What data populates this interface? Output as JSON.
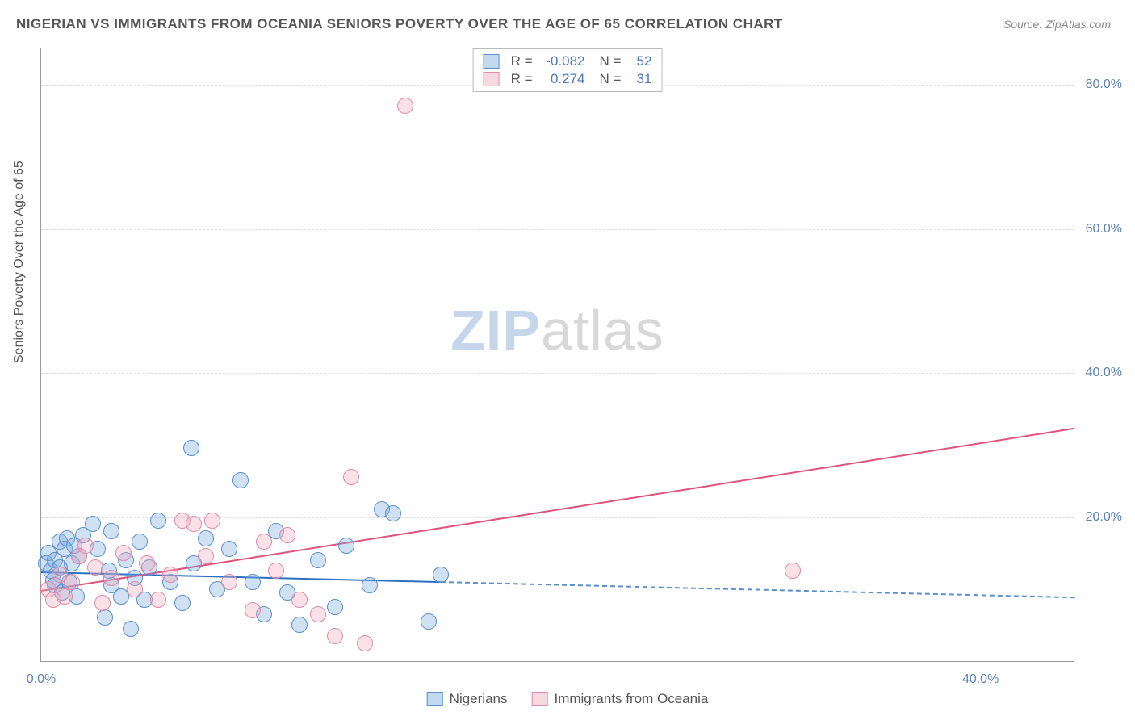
{
  "title": "NIGERIAN VS IMMIGRANTS FROM OCEANIA SENIORS POVERTY OVER THE AGE OF 65 CORRELATION CHART",
  "source": "Source: ZipAtlas.com",
  "ylabel": "Seniors Poverty Over the Age of 65",
  "watermark": {
    "zip": "ZIP",
    "atlas": "atlas"
  },
  "chart": {
    "type": "scatter",
    "xlim": [
      0,
      44
    ],
    "ylim": [
      0,
      85
    ],
    "xticks": [
      {
        "value": 0,
        "label": "0.0%"
      },
      {
        "value": 40,
        "label": "40.0%"
      }
    ],
    "yticks": [
      {
        "value": 20,
        "label": "20.0%"
      },
      {
        "value": 40,
        "label": "40.0%"
      },
      {
        "value": 60,
        "label": "60.0%"
      },
      {
        "value": 80,
        "label": "80.0%"
      }
    ],
    "background_color": "#ffffff",
    "grid_color": "#dddddd",
    "marker_radius": 10,
    "series": [
      {
        "name": "Nigerians",
        "color_fill": "rgba(120,170,220,0.35)",
        "color_stroke": "#5a8fcf",
        "r": "-0.082",
        "n": "52",
        "trend": {
          "y_at_x0": 12.5,
          "y_at_xmax": 9.0,
          "solid_until_x": 17,
          "color": "#2d6fbf"
        },
        "points": [
          [
            0.2,
            13.5
          ],
          [
            0.3,
            15.0
          ],
          [
            0.4,
            12.5
          ],
          [
            0.5,
            11.2
          ],
          [
            0.6,
            14.0
          ],
          [
            0.6,
            10.5
          ],
          [
            0.8,
            16.5
          ],
          [
            0.8,
            13.0
          ],
          [
            0.9,
            9.5
          ],
          [
            1.0,
            15.5
          ],
          [
            1.1,
            17.0
          ],
          [
            1.2,
            11.0
          ],
          [
            1.3,
            13.5
          ],
          [
            1.4,
            16.0
          ],
          [
            1.5,
            9.0
          ],
          [
            1.6,
            14.5
          ],
          [
            1.8,
            17.5
          ],
          [
            2.2,
            19.0
          ],
          [
            2.4,
            15.5
          ],
          [
            2.7,
            6.0
          ],
          [
            2.9,
            12.5
          ],
          [
            3.0,
            18.0
          ],
          [
            3.0,
            10.5
          ],
          [
            3.4,
            9.0
          ],
          [
            3.6,
            14.0
          ],
          [
            3.8,
            4.5
          ],
          [
            4.0,
            11.5
          ],
          [
            4.2,
            16.5
          ],
          [
            4.4,
            8.5
          ],
          [
            4.6,
            13.0
          ],
          [
            5.0,
            19.5
          ],
          [
            5.5,
            11.0
          ],
          [
            6.0,
            8.0
          ],
          [
            6.4,
            29.5
          ],
          [
            6.5,
            13.5
          ],
          [
            7.0,
            17.0
          ],
          [
            7.5,
            10.0
          ],
          [
            8.0,
            15.5
          ],
          [
            8.5,
            25.0
          ],
          [
            9.0,
            11.0
          ],
          [
            9.5,
            6.5
          ],
          [
            10.0,
            18.0
          ],
          [
            10.5,
            9.5
          ],
          [
            11.0,
            5.0
          ],
          [
            11.8,
            14.0
          ],
          [
            12.5,
            7.5
          ],
          [
            13.0,
            16.0
          ],
          [
            14.0,
            10.5
          ],
          [
            14.5,
            21.0
          ],
          [
            15.0,
            20.5
          ],
          [
            16.5,
            5.5
          ],
          [
            17.0,
            12.0
          ]
        ]
      },
      {
        "name": "Immigrants from Oceania",
        "color_fill": "rgba(240,170,190,0.35)",
        "color_stroke": "#e08aa8",
        "r": "0.274",
        "n": "31",
        "trend": {
          "y_at_x0": 10.0,
          "y_at_xmax": 32.5,
          "solid_until_x": 44,
          "color": "#e0527a"
        },
        "points": [
          [
            0.3,
            10.0
          ],
          [
            0.5,
            8.5
          ],
          [
            0.8,
            12.0
          ],
          [
            1.0,
            9.0
          ],
          [
            1.3,
            11.0
          ],
          [
            1.6,
            14.5
          ],
          [
            1.9,
            16.0
          ],
          [
            2.3,
            13.0
          ],
          [
            2.6,
            8.0
          ],
          [
            3.0,
            11.5
          ],
          [
            3.5,
            15.0
          ],
          [
            4.0,
            10.0
          ],
          [
            4.5,
            13.5
          ],
          [
            5.0,
            8.5
          ],
          [
            5.5,
            12.0
          ],
          [
            6.0,
            19.5
          ],
          [
            6.5,
            19.0
          ],
          [
            7.0,
            14.5
          ],
          [
            7.3,
            19.5
          ],
          [
            8.0,
            11.0
          ],
          [
            9.0,
            7.0
          ],
          [
            9.5,
            16.5
          ],
          [
            10.0,
            12.5
          ],
          [
            10.5,
            17.5
          ],
          [
            11.0,
            8.5
          ],
          [
            11.8,
            6.5
          ],
          [
            12.5,
            3.5
          ],
          [
            13.2,
            25.5
          ],
          [
            13.8,
            2.5
          ],
          [
            15.5,
            77.0
          ],
          [
            32.0,
            12.5
          ]
        ]
      }
    ]
  },
  "legend_bottom": {
    "series1": "Nigerians",
    "series2": "Immigrants from Oceania"
  }
}
